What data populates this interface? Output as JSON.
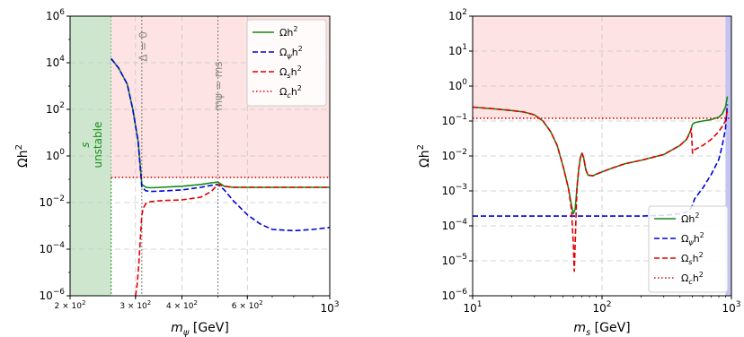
{
  "chart_data": [
    {
      "type": "line",
      "xlabel_base": "m",
      "xlabel_sub": "ψ",
      "xlabel_unit": " [GeV]",
      "ylabel_base": "Ωh",
      "ylabel_sup": "2",
      "xscale": "log",
      "yscale": "log",
      "xlim": [
        200,
        1000
      ],
      "ylim": [
        1e-06,
        1000000.0
      ],
      "grid": true,
      "legend_position": "top-right",
      "x_ticks": [
        {
          "value": 200,
          "base": "2 × 10",
          "exp": "2",
          "small": true
        },
        {
          "value": 300,
          "base": "3 × 10",
          "exp": "2",
          "small": true
        },
        {
          "value": 400,
          "base": "4 × 10",
          "exp": "2",
          "small": true
        },
        {
          "value": 600,
          "base": "6 × 10",
          "exp": "2",
          "small": true
        },
        {
          "value": 1000,
          "base": "10",
          "exp": "3",
          "small": false
        }
      ],
      "y_ticks": [
        {
          "value": 1e-06,
          "base": "10",
          "exp": "−6"
        },
        {
          "value": 0.0001,
          "base": "10",
          "exp": "−4"
        },
        {
          "value": 0.01,
          "base": "10",
          "exp": "−2"
        },
        {
          "value": 1,
          "base": "10",
          "exp": "0"
        },
        {
          "value": 100.0,
          "base": "10",
          "exp": "2"
        },
        {
          "value": 10000.0,
          "base": "10",
          "exp": "4"
        },
        {
          "value": 1000000.0,
          "base": "10",
          "exp": "6"
        }
      ],
      "regions": [
        {
          "name": "s-unstable-region",
          "x": [
            200,
            258
          ],
          "y": [
            1e-06,
            1000000.0
          ],
          "color": "#cde6cd",
          "edge": "#1a8f1a"
        },
        {
          "name": "overclosure-region",
          "x": [
            258,
            1000
          ],
          "y": [
            0.12,
            1000000.0
          ],
          "color": "#fde3e3",
          "edge": null
        }
      ],
      "vlines": [
        {
          "name": "delta-zero-line",
          "x": 312
        },
        {
          "name": "mass-equal-line",
          "x": 500
        }
      ],
      "hlines": [
        {
          "name": "omega-c-line",
          "y": 0.12,
          "x": [
            258,
            1000
          ],
          "color": "#e00000",
          "style": "dotted"
        }
      ],
      "annotations": [
        {
          "name": "s-unstable-label",
          "lines": [
            "s",
            "unstable"
          ],
          "italic_first": true,
          "x": 225,
          "y": 3,
          "color": "#1a8f1a",
          "rotate": -90
        },
        {
          "name": "delta-zero-label",
          "text": "Δ = 0",
          "x": 322,
          "y": 50000.0,
          "color": "#888888",
          "rotate": -90
        },
        {
          "name": "mass-equal-label",
          "text": "mψ = ms",
          "x": 513,
          "y": 1000.0,
          "color": "#888888",
          "rotate": -90
        }
      ],
      "series": [
        {
          "name": "Ωh²",
          "label": "Ωh",
          "sub": "",
          "sup": "2",
          "color": "#138a13",
          "style": "solid",
          "x": [
            258,
            270,
            285,
            295,
            305,
            312,
            320,
            330,
            350,
            400,
            450,
            480,
            500,
            520,
            550,
            600,
            700,
            800,
            900,
            1000
          ],
          "y": [
            15000,
            6000,
            1200,
            100,
            4,
            0.06,
            0.045,
            0.043,
            0.045,
            0.05,
            0.06,
            0.07,
            0.075,
            0.05,
            0.045,
            0.045,
            0.045,
            0.045,
            0.045,
            0.045
          ]
        },
        {
          "name": "Ωψh²",
          "label": "Ω",
          "sub": "ψ",
          "sup": "2",
          "color": "#0000e0",
          "style": "dashed",
          "x": [
            258,
            270,
            285,
            295,
            305,
            312,
            320,
            330,
            350,
            400,
            450,
            480,
            500,
            520,
            550,
            600,
            650,
            700,
            800,
            900,
            1000
          ],
          "y": [
            15000,
            6000,
            1200,
            100,
            4,
            0.045,
            0.032,
            0.03,
            0.031,
            0.035,
            0.045,
            0.055,
            0.06,
            0.035,
            0.012,
            0.003,
            0.0012,
            0.0007,
            0.00062,
            0.0007,
            0.00085
          ]
        },
        {
          "name": "Ωsh²",
          "label": "Ω",
          "sub": "s",
          "sup": "2",
          "color": "#e00000",
          "style": "dashed",
          "x": [
            300,
            303,
            306,
            308,
            310,
            312,
            315,
            320,
            330,
            350,
            400,
            450,
            480,
            500,
            520,
            550,
            600,
            700,
            800,
            900,
            1000
          ],
          "y": [
            1e-06,
            3e-06,
            2e-05,
            0.0001,
            0.0006,
            0.003,
            0.006,
            0.009,
            0.011,
            0.012,
            0.013,
            0.017,
            0.03,
            0.06,
            0.05,
            0.045,
            0.045,
            0.045,
            0.045,
            0.045,
            0.045
          ]
        },
        {
          "name": "Ωch²",
          "label": "Ω",
          "sub": "c",
          "sup": "2",
          "color": "#e00000",
          "style": "dotted",
          "x": [
            258,
            1000
          ],
          "y": [
            0.12,
            0.12
          ]
        }
      ]
    },
    {
      "type": "line",
      "xlabel_base": "m",
      "xlabel_sub": "s",
      "xlabel_unit": " [GeV]",
      "ylabel_base": "Ωh",
      "ylabel_sup": "2",
      "xscale": "log",
      "yscale": "log",
      "xlim": [
        10,
        1000
      ],
      "ylim": [
        1e-06,
        100
      ],
      "grid": true,
      "legend_position": "bottom-right",
      "x_ticks": [
        {
          "value": 10,
          "base": "10",
          "exp": "1",
          "small": false
        },
        {
          "value": 100,
          "base": "10",
          "exp": "2",
          "small": false
        },
        {
          "value": 1000,
          "base": "10",
          "exp": "3",
          "small": false
        }
      ],
      "y_ticks": [
        {
          "value": 1e-06,
          "base": "10",
          "exp": "−6"
        },
        {
          "value": 1e-05,
          "base": "10",
          "exp": "−5"
        },
        {
          "value": 0.0001,
          "base": "10",
          "exp": "−4"
        },
        {
          "value": 0.001,
          "base": "10",
          "exp": "−3"
        },
        {
          "value": 0.01,
          "base": "10",
          "exp": "−2"
        },
        {
          "value": 0.1,
          "base": "10",
          "exp": "−1"
        },
        {
          "value": 1,
          "base": "10",
          "exp": "0"
        },
        {
          "value": 10,
          "base": "10",
          "exp": "1"
        },
        {
          "value": 100,
          "base": "10",
          "exp": "2"
        }
      ],
      "regions": [
        {
          "name": "overclosure-region",
          "x": [
            10,
            1000
          ],
          "y": [
            0.12,
            100
          ],
          "color": "#fde3e3",
          "edge": null
        },
        {
          "name": "excluded-mass-region",
          "x": [
            900,
            1000
          ],
          "y": [
            1e-06,
            100
          ],
          "color": "#c4c4f2",
          "edge": null
        }
      ],
      "vlines": [],
      "hlines": [
        {
          "name": "omega-c-line",
          "y": 0.12,
          "x": [
            10,
            1000
          ],
          "color": "#e00000",
          "style": "dotted"
        }
      ],
      "annotations": [],
      "series": [
        {
          "name": "Ωh²",
          "label": "Ωh",
          "sub": "",
          "sup": "2",
          "color": "#138a13",
          "style": "solid",
          "x": [
            10,
            15,
            20,
            25,
            30,
            35,
            40,
            45,
            50,
            55,
            58,
            60,
            62,
            64,
            66,
            68,
            70,
            72,
            75,
            78,
            80,
            85,
            90,
            100,
            120,
            150,
            200,
            300,
            400,
            450,
            480,
            500,
            520,
            600,
            700,
            800,
            850,
            900,
            930
          ],
          "y": [
            0.25,
            0.22,
            0.2,
            0.18,
            0.15,
            0.1,
            0.05,
            0.02,
            0.005,
            0.0012,
            0.0004,
            0.00022,
            0.0003,
            0.0012,
            0.004,
            0.009,
            0.012,
            0.009,
            0.004,
            0.0028,
            0.0028,
            0.0027,
            0.003,
            0.0035,
            0.0045,
            0.006,
            0.0075,
            0.011,
            0.02,
            0.03,
            0.05,
            0.08,
            0.09,
            0.1,
            0.11,
            0.13,
            0.16,
            0.25,
            0.5
          ]
        },
        {
          "name": "Ωψh²",
          "label": "Ω",
          "sub": "ψ",
          "sup": "2",
          "color": "#0000e0",
          "style": "dashed",
          "x": [
            10,
            50,
            100,
            200,
            300,
            400,
            450,
            480,
            500,
            520,
            600,
            700,
            800,
            850,
            900,
            930
          ],
          "y": [
            0.00019,
            0.00019,
            0.00019,
            0.00019,
            0.0002,
            0.00022,
            0.00025,
            0.0003,
            0.0004,
            0.0006,
            0.0012,
            0.003,
            0.008,
            0.02,
            0.06,
            0.3
          ]
        },
        {
          "name": "Ωsh²",
          "label": "Ω",
          "sub": "s",
          "sup": "2",
          "color": "#e00000",
          "style": "dashed",
          "x": [
            10,
            15,
            20,
            25,
            30,
            35,
            40,
            45,
            50,
            55,
            58,
            60,
            61,
            62,
            63,
            64,
            66,
            68,
            70,
            72,
            75,
            78,
            80,
            85,
            90,
            100,
            120,
            150,
            200,
            300,
            400,
            450,
            470,
            490,
            500,
            520,
            600,
            700,
            800,
            850,
            900,
            930
          ],
          "y": [
            0.25,
            0.22,
            0.2,
            0.18,
            0.15,
            0.1,
            0.05,
            0.02,
            0.005,
            0.0012,
            0.0003,
            3e-05,
            5e-06,
            3e-05,
            0.0002,
            0.0012,
            0.004,
            0.009,
            0.012,
            0.009,
            0.004,
            0.0028,
            0.0028,
            0.0027,
            0.003,
            0.0035,
            0.0045,
            0.006,
            0.0075,
            0.011,
            0.02,
            0.03,
            0.04,
            0.06,
            0.012,
            0.015,
            0.02,
            0.03,
            0.05,
            0.07,
            0.1,
            0.2
          ]
        },
        {
          "name": "Ωch²",
          "label": "Ω",
          "sub": "c",
          "sup": "2",
          "color": "#e00000",
          "style": "dotted",
          "x": [
            10,
            1000
          ],
          "y": [
            0.12,
            0.12
          ]
        }
      ]
    }
  ]
}
